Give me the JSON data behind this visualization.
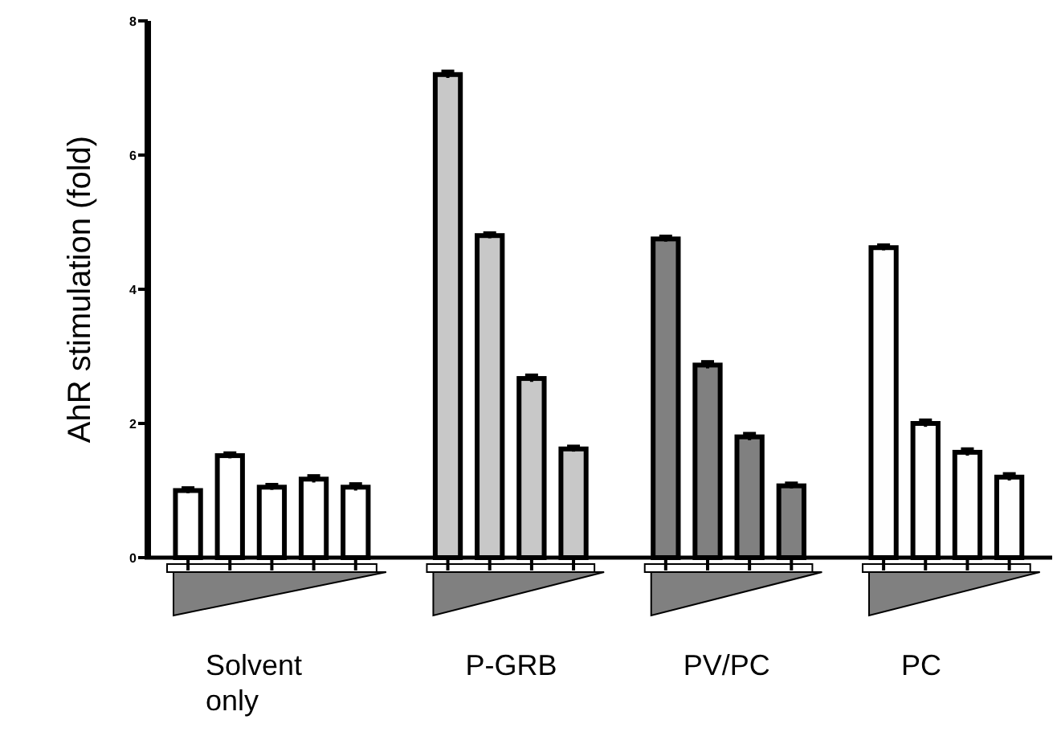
{
  "chart_data": {
    "type": "bar",
    "ylabel": "AhR stimulation (fold)",
    "categories": [
      null,
      null,
      null,
      null,
      null,
      null,
      null,
      null,
      null,
      null,
      null,
      null,
      null,
      null,
      null,
      null,
      null
    ],
    "values": [
      1.0,
      1.52,
      1.05,
      1.17,
      1.05,
      7.2,
      4.8,
      2.67,
      1.62,
      4.75,
      2.87,
      1.8,
      1.07,
      4.62,
      2.0,
      1.57,
      1.2
    ],
    "colors": [
      "#ffffff",
      "#ffffff",
      "#ffffff",
      "#ffffff",
      "#ffffff",
      "#c8c8c8",
      "#c8c8c8",
      "#c8c8c8",
      "#c8c8c8",
      "#808080",
      "#808080",
      "#808080",
      "#808080",
      "#fefefe",
      "#fefefe",
      "#fefefe",
      "#fefefe"
    ],
    "errors": [
      0.04,
      0.04,
      0.04,
      0.05,
      0.05,
      0.05,
      0.04,
      0.05,
      0.04,
      0.04,
      0.05,
      0.05,
      0.04,
      0.04,
      0.05,
      0.05,
      0.05
    ],
    "ylim": [
      0,
      8
    ],
    "yticks": [
      0,
      2,
      4,
      6,
      8
    ],
    "grid": false,
    "annotations": [
      "Solvent only",
      "P-GRB",
      "PV/PC",
      "PC"
    ]
  }
}
